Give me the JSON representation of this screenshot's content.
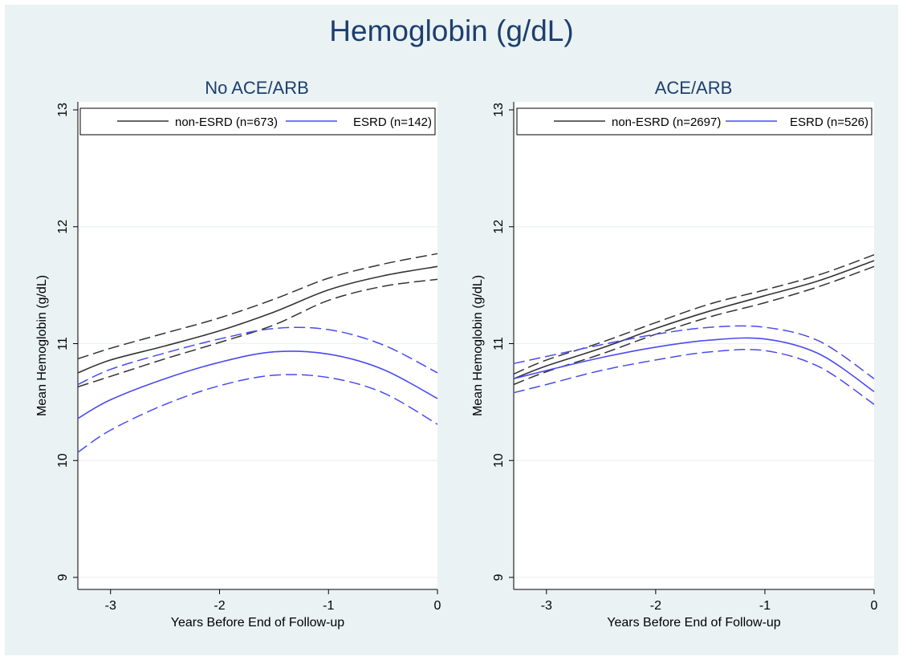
{
  "title": "Hemoglobin (g/dL)",
  "chart_data": [
    {
      "type": "line",
      "title": "No ACE/ARB",
      "xlabel": "Years Before End of Follow-up",
      "ylabel": "Mean Hemoglobin (g/dL)",
      "xlim": [
        -3.3,
        0
      ],
      "ylim": [
        9,
        13
      ],
      "xticks": [
        "-3",
        "-2",
        "-1",
        "0"
      ],
      "yticks": [
        "9",
        "10",
        "11",
        "12",
        "13"
      ],
      "grid": true,
      "legend": {
        "placement": "top",
        "entries": [
          "non-ESRD (n=673)",
          "ESRD (n=142)"
        ]
      },
      "x": [
        -3.3,
        -3.0,
        -2.5,
        -2.0,
        -1.5,
        -1.0,
        -0.5,
        0.0
      ],
      "series": [
        {
          "name": "non-ESRD (n=673)",
          "color": "#333333",
          "values": [
            10.75,
            10.86,
            10.98,
            11.11,
            11.27,
            11.46,
            11.58,
            11.66
          ],
          "lower": [
            10.63,
            10.72,
            10.87,
            11.01,
            11.16,
            11.37,
            11.49,
            11.55
          ],
          "upper": [
            10.87,
            10.96,
            11.09,
            11.22,
            11.38,
            11.56,
            11.68,
            11.77
          ]
        },
        {
          "name": "ESRD (n=142)",
          "color": "#4a4af0",
          "values": [
            10.36,
            10.52,
            10.7,
            10.84,
            10.93,
            10.91,
            10.78,
            10.53
          ],
          "lower": [
            10.07,
            10.26,
            10.48,
            10.64,
            10.73,
            10.71,
            10.58,
            10.31
          ],
          "upper": [
            10.65,
            10.78,
            10.92,
            11.04,
            11.13,
            11.12,
            10.99,
            10.75
          ]
        }
      ]
    },
    {
      "type": "line",
      "title": "ACE/ARB",
      "xlabel": "Years Before End of Follow-up",
      "ylabel": "Mean Hemoglobin (g/dL)",
      "xlim": [
        -3.3,
        0
      ],
      "ylim": [
        9,
        13
      ],
      "xticks": [
        "-3",
        "-2",
        "-1",
        "0"
      ],
      "yticks": [
        "9",
        "10",
        "11",
        "12",
        "13"
      ],
      "grid": true,
      "legend": {
        "placement": "top",
        "entries": [
          "non-ESRD (n=2697)",
          "ESRD (n=526)"
        ]
      },
      "x": [
        -3.3,
        -3.0,
        -2.5,
        -2.0,
        -1.5,
        -1.0,
        -0.5,
        0.0
      ],
      "series": [
        {
          "name": "non-ESRD (n=2697)",
          "color": "#333333",
          "values": [
            10.7,
            10.81,
            10.96,
            11.13,
            11.28,
            11.41,
            11.54,
            11.71
          ],
          "lower": [
            10.65,
            10.76,
            10.91,
            11.08,
            11.23,
            11.35,
            11.49,
            11.66
          ],
          "upper": [
            10.74,
            10.86,
            11.01,
            11.18,
            11.34,
            11.46,
            11.59,
            11.76
          ]
        },
        {
          "name": "ESRD (n=526)",
          "color": "#4a4af0",
          "values": [
            10.7,
            10.77,
            10.88,
            10.97,
            11.03,
            11.04,
            10.91,
            10.59
          ],
          "lower": [
            10.58,
            10.65,
            10.77,
            10.86,
            10.93,
            10.94,
            10.8,
            10.48
          ],
          "upper": [
            10.83,
            10.89,
            10.99,
            11.08,
            11.14,
            11.14,
            11.02,
            10.7
          ]
        }
      ]
    }
  ]
}
